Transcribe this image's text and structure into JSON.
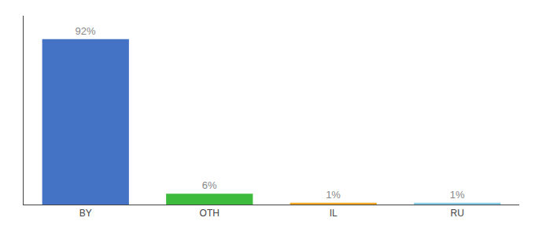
{
  "chart_data": {
    "type": "bar",
    "categories": [
      "BY",
      "OTH",
      "IL",
      "RU"
    ],
    "values": [
      92,
      6,
      1,
      1
    ],
    "value_labels": [
      "92%",
      "6%",
      "1%",
      "1%"
    ],
    "colors": [
      "#4472c4",
      "#3dbb3d",
      "#f5a623",
      "#87ceeb"
    ],
    "ylim": [
      0,
      105
    ],
    "data_labels": true,
    "tick_labels": "x",
    "grid": false
  }
}
